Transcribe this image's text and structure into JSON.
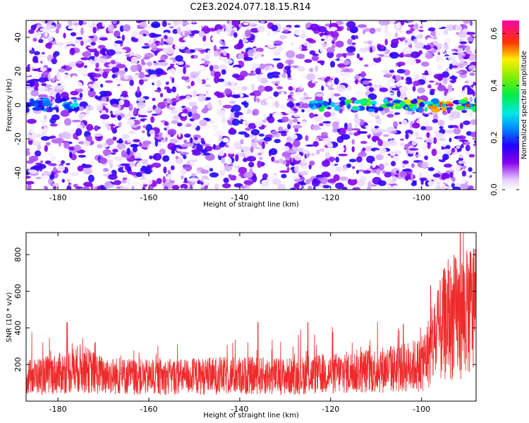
{
  "title": "C2E3.2024.077.18.15.R14",
  "colors": {
    "snr_line": "#ee2a2a",
    "frame": "#000000"
  },
  "chart_data": [
    {
      "type": "heatmap",
      "xlabel": "Height of straight line (km)",
      "ylabel": "Frequency (Hz)",
      "xlim": [
        -187,
        -88
      ],
      "ylim": [
        -50,
        50
      ],
      "x_ticks": [
        -180,
        -160,
        -140,
        -120,
        -100
      ],
      "y_ticks": [
        -40,
        -20,
        0,
        20,
        40
      ],
      "colorbar": {
        "label": "Normalized spectral amplitude",
        "range": [
          0.0,
          0.65
        ],
        "ticks": [
          "0.0",
          "0.2",
          "0.4",
          "0.6"
        ],
        "tick_values": [
          0.0,
          0.2,
          0.4,
          0.6
        ],
        "colormap": "rainbow (white, violet, blue, cyan, green, yellow, red, magenta)"
      },
      "features": [
        {
          "x": [
            -187,
            -175
          ],
          "freq": 0,
          "peak_amplitude": 0.3
        },
        {
          "x": [
            -125,
            -88
          ],
          "freq": 0,
          "peak_amplitude": 0.62
        }
      ],
      "background_amplitude_range": [
        0.0,
        0.18
      ]
    },
    {
      "type": "line",
      "xlabel": "Height of straight line (km)",
      "ylabel": "SNR (10 * v/v)",
      "xlim": [
        -187,
        -88
      ],
      "ylim": [
        0,
        920
      ],
      "x_ticks": [
        -180,
        -160,
        -140,
        -120,
        -100
      ],
      "y_ticks": [
        200,
        400,
        600,
        800
      ],
      "series": [
        {
          "x": [
            -187,
            -180,
            -175,
            -170,
            -160,
            -150,
            -140,
            -130,
            -120,
            -115,
            -110,
            -105,
            -100,
            -97,
            -95,
            -93,
            -91,
            -89,
            -88
          ],
          "values": [
            130,
            150,
            180,
            140,
            130,
            135,
            140,
            135,
            150,
            160,
            170,
            180,
            200,
            330,
            420,
            450,
            480,
            500,
            420
          ]
        }
      ],
      "peaks": [
        {
          "x": -178,
          "value": 430
        },
        {
          "x": -136,
          "value": 430
        },
        {
          "x": -125,
          "value": 430
        },
        {
          "x": -104,
          "value": 420
        },
        {
          "x": -98,
          "value": 630
        },
        {
          "x": -91.5,
          "value": 920
        },
        {
          "x": -90,
          "value": 800
        },
        {
          "x": -88.5,
          "value": 830
        }
      ]
    }
  ]
}
